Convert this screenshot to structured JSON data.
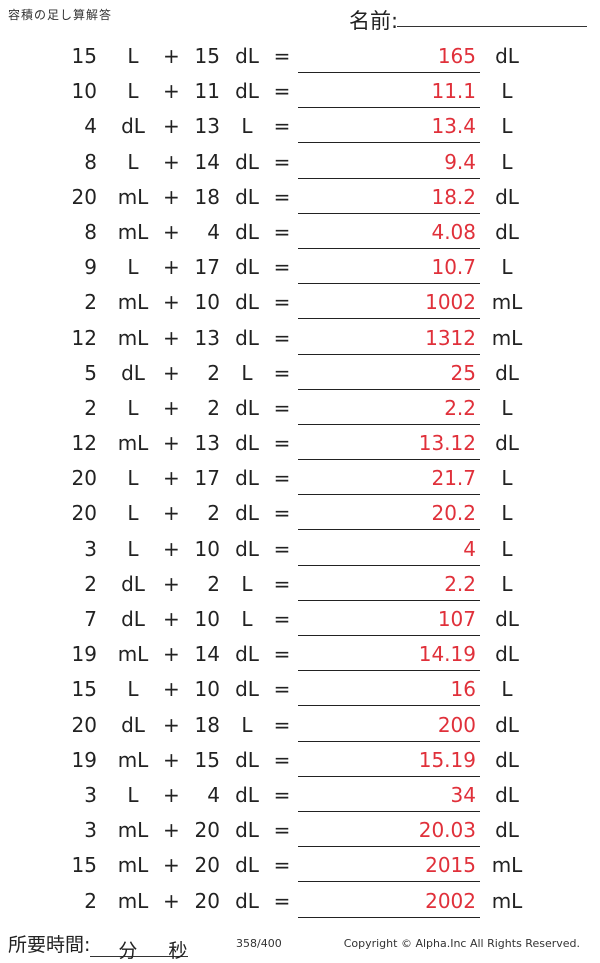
{
  "header": {
    "title": "容積の足し算解答",
    "name_label": "名前:"
  },
  "problems": [
    {
      "a": "15",
      "ua": "L",
      "op": "+",
      "b": "15",
      "ub": "dL",
      "eq": "=",
      "ans": "165",
      "uans": "dL"
    },
    {
      "a": "10",
      "ua": "L",
      "op": "+",
      "b": "11",
      "ub": "dL",
      "eq": "=",
      "ans": "11.1",
      "uans": "L"
    },
    {
      "a": "4",
      "ua": "dL",
      "op": "+",
      "b": "13",
      "ub": "L",
      "eq": "=",
      "ans": "13.4",
      "uans": "L"
    },
    {
      "a": "8",
      "ua": "L",
      "op": "+",
      "b": "14",
      "ub": "dL",
      "eq": "=",
      "ans": "9.4",
      "uans": "L"
    },
    {
      "a": "20",
      "ua": "mL",
      "op": "+",
      "b": "18",
      "ub": "dL",
      "eq": "=",
      "ans": "18.2",
      "uans": "dL"
    },
    {
      "a": "8",
      "ua": "mL",
      "op": "+",
      "b": "4",
      "ub": "dL",
      "eq": "=",
      "ans": "4.08",
      "uans": "dL"
    },
    {
      "a": "9",
      "ua": "L",
      "op": "+",
      "b": "17",
      "ub": "dL",
      "eq": "=",
      "ans": "10.7",
      "uans": "L"
    },
    {
      "a": "2",
      "ua": "mL",
      "op": "+",
      "b": "10",
      "ub": "dL",
      "eq": "=",
      "ans": "1002",
      "uans": "mL"
    },
    {
      "a": "12",
      "ua": "mL",
      "op": "+",
      "b": "13",
      "ub": "dL",
      "eq": "=",
      "ans": "1312",
      "uans": "mL"
    },
    {
      "a": "5",
      "ua": "dL",
      "op": "+",
      "b": "2",
      "ub": "L",
      "eq": "=",
      "ans": "25",
      "uans": "dL"
    },
    {
      "a": "2",
      "ua": "L",
      "op": "+",
      "b": "2",
      "ub": "dL",
      "eq": "=",
      "ans": "2.2",
      "uans": "L"
    },
    {
      "a": "12",
      "ua": "mL",
      "op": "+",
      "b": "13",
      "ub": "dL",
      "eq": "=",
      "ans": "13.12",
      "uans": "dL"
    },
    {
      "a": "20",
      "ua": "L",
      "op": "+",
      "b": "17",
      "ub": "dL",
      "eq": "=",
      "ans": "21.7",
      "uans": "L"
    },
    {
      "a": "20",
      "ua": "L",
      "op": "+",
      "b": "2",
      "ub": "dL",
      "eq": "=",
      "ans": "20.2",
      "uans": "L"
    },
    {
      "a": "3",
      "ua": "L",
      "op": "+",
      "b": "10",
      "ub": "dL",
      "eq": "=",
      "ans": "4",
      "uans": "L"
    },
    {
      "a": "2",
      "ua": "dL",
      "op": "+",
      "b": "2",
      "ub": "L",
      "eq": "=",
      "ans": "2.2",
      "uans": "L"
    },
    {
      "a": "7",
      "ua": "dL",
      "op": "+",
      "b": "10",
      "ub": "L",
      "eq": "=",
      "ans": "107",
      "uans": "dL"
    },
    {
      "a": "19",
      "ua": "mL",
      "op": "+",
      "b": "14",
      "ub": "dL",
      "eq": "=",
      "ans": "14.19",
      "uans": "dL"
    },
    {
      "a": "15",
      "ua": "L",
      "op": "+",
      "b": "10",
      "ub": "dL",
      "eq": "=",
      "ans": "16",
      "uans": "L"
    },
    {
      "a": "20",
      "ua": "dL",
      "op": "+",
      "b": "18",
      "ub": "L",
      "eq": "=",
      "ans": "200",
      "uans": "dL"
    },
    {
      "a": "19",
      "ua": "mL",
      "op": "+",
      "b": "15",
      "ub": "dL",
      "eq": "=",
      "ans": "15.19",
      "uans": "dL"
    },
    {
      "a": "3",
      "ua": "L",
      "op": "+",
      "b": "4",
      "ub": "dL",
      "eq": "=",
      "ans": "34",
      "uans": "dL"
    },
    {
      "a": "3",
      "ua": "mL",
      "op": "+",
      "b": "20",
      "ub": "dL",
      "eq": "=",
      "ans": "20.03",
      "uans": "dL"
    },
    {
      "a": "15",
      "ua": "mL",
      "op": "+",
      "b": "20",
      "ub": "dL",
      "eq": "=",
      "ans": "2015",
      "uans": "mL"
    },
    {
      "a": "2",
      "ua": "mL",
      "op": "+",
      "b": "20",
      "ub": "dL",
      "eq": "=",
      "ans": "2002",
      "uans": "mL"
    }
  ],
  "footer": {
    "time_label": "所要時間:",
    "minutes_label": "分",
    "seconds_label": "秒",
    "page": "358/400",
    "copyright": "Copyright © Alpha.Inc All Rights Reserved."
  },
  "colors": {
    "answer": "#e0303a",
    "text": "#222222"
  }
}
